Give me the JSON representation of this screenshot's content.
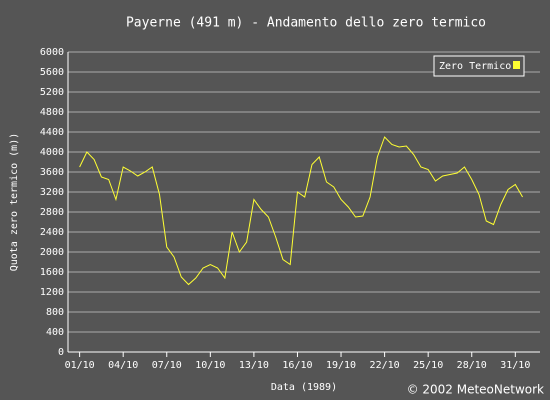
{
  "chart_data": {
    "type": "line",
    "title": "Payerne (491 m) - Andamento dello zero termico",
    "xlabel": "Data (1989)",
    "ylabel": "Quota zero termico (m))",
    "credit": "© 2002 MeteoNetwork",
    "x": [
      1,
      1.5,
      2,
      2.5,
      3,
      3.5,
      4,
      4.5,
      5,
      5.5,
      6,
      6.5,
      7,
      7.5,
      8,
      8.5,
      9,
      9.5,
      10,
      10.5,
      11,
      11.5,
      12,
      12.5,
      13,
      13.5,
      14,
      14.5,
      15,
      15.5,
      16,
      16.5,
      17,
      17.5,
      18,
      18.5,
      19,
      19.5,
      20,
      20.5,
      21,
      21.5,
      22,
      22.5,
      23,
      23.5,
      24,
      24.5,
      25,
      25.5,
      26,
      26.5,
      27,
      27.5,
      28,
      28.5,
      29,
      29.5,
      30,
      30.5,
      31,
      31.5
    ],
    "series": [
      {
        "name": "Zero Termico",
        "color": "#ffff33",
        "values": [
          3700,
          4000,
          3850,
          3500,
          3450,
          3050,
          3700,
          3620,
          3520,
          3600,
          3700,
          3150,
          2100,
          1900,
          1500,
          1350,
          1480,
          1680,
          1750,
          1680,
          1480,
          2400,
          2000,
          2200,
          3050,
          2850,
          2700,
          2300,
          1850,
          1750,
          3200,
          3100,
          3750,
          3900,
          3400,
          3300,
          3050,
          2900,
          2700,
          2720,
          3100,
          3900,
          4300,
          4150,
          4100,
          4120,
          3950,
          3700,
          3650,
          3420,
          3520,
          3550,
          3580,
          3700,
          3450,
          3150,
          2620,
          2550,
          2950,
          3250,
          3350,
          3100
        ]
      }
    ],
    "xlim": [
      0.2,
      32.7
    ],
    "xticks": [
      {
        "value": 1,
        "label": "01/10"
      },
      {
        "value": 4,
        "label": "04/10"
      },
      {
        "value": 7,
        "label": "07/10"
      },
      {
        "value": 10,
        "label": "10/10"
      },
      {
        "value": 13,
        "label": "13/10"
      },
      {
        "value": 16,
        "label": "16/10"
      },
      {
        "value": 19,
        "label": "19/10"
      },
      {
        "value": 22,
        "label": "22/10"
      },
      {
        "value": 25,
        "label": "25/10"
      },
      {
        "value": 28,
        "label": "28/10"
      },
      {
        "value": 31,
        "label": "31/10"
      }
    ],
    "ylim": [
      0,
      6000
    ],
    "yticks": [
      0,
      400,
      800,
      1200,
      1600,
      2000,
      2400,
      2800,
      3200,
      3600,
      4000,
      4400,
      4800,
      5200,
      5600,
      6000
    ],
    "grid": true,
    "legend": "upper right"
  }
}
